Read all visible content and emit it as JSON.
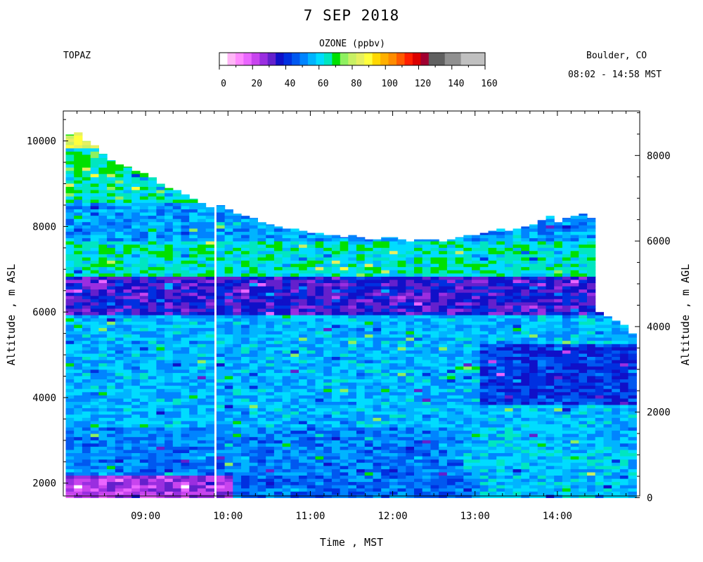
{
  "chart_data": {
    "type": "heatmap",
    "title": "7 SEP 2018",
    "instrument": "TOPAZ",
    "location": "Boulder, CO",
    "time_range": "08:02 - 14:58 MST",
    "xlabel": "Time , MST",
    "ylabel_left": "Altitude , m ASL",
    "ylabel_right": "Altitude , m AGL",
    "x_range_hours": [
      8.0,
      15.0
    ],
    "x_ticks": [
      {
        "value": 9,
        "label": "09:00"
      },
      {
        "value": 10,
        "label": "10:00"
      },
      {
        "value": 11,
        "label": "11:00"
      },
      {
        "value": 12,
        "label": "12:00"
      },
      {
        "value": 13,
        "label": "13:00"
      },
      {
        "value": 14,
        "label": "14:00"
      }
    ],
    "y_left_range": [
      1700,
      10700
    ],
    "y_left_ticks": [
      2000,
      4000,
      6000,
      8000,
      10000
    ],
    "y_right_ticks": [
      0,
      2000,
      4000,
      6000,
      8000
    ],
    "surface_altitude_m": 1660,
    "colorbar": {
      "label": "OZONE (ppbv)",
      "range": [
        0,
        160
      ],
      "tick_values": [
        0,
        20,
        40,
        60,
        80,
        100,
        120,
        140,
        160
      ],
      "colors": [
        "#ffffff",
        "#ffb6f6",
        "#ff8aff",
        "#ea66ff",
        "#c844ee",
        "#9a2ee0",
        "#6420cc",
        "#1010c8",
        "#0030e0",
        "#0058f0",
        "#0084ff",
        "#00b4ff",
        "#00dcff",
        "#00e6c0",
        "#00e000",
        "#8ef060",
        "#c8f064",
        "#e6f060",
        "#ffff3c",
        "#ffd700",
        "#ffb000",
        "#ff8c00",
        "#ff5a00",
        "#ff1e00",
        "#dc0000",
        "#a00030",
        "#606060",
        "#606060",
        "#909090",
        "#909090",
        "#c0c0c0",
        "#c0c0c0",
        "#c0c0c0"
      ]
    },
    "profile_times_hours": [
      8.03,
      8.13,
      8.23,
      8.33,
      8.43,
      8.53,
      8.63,
      8.73,
      8.83,
      8.93,
      9.03,
      9.13,
      9.23,
      9.33,
      9.43,
      9.53,
      9.63,
      9.73,
      9.86,
      9.96,
      10.06,
      10.16,
      10.26,
      10.36,
      10.46,
      10.56,
      10.66,
      10.76,
      10.86,
      10.96,
      11.06,
      11.16,
      11.26,
      11.36,
      11.46,
      11.56,
      11.66,
      11.76,
      11.86,
      11.96,
      12.06,
      12.16,
      12.26,
      12.36,
      12.46,
      12.56,
      12.66,
      12.76,
      12.86,
      12.96,
      13.06,
      13.16,
      13.26,
      13.36,
      13.46,
      13.56,
      13.66,
      13.76,
      13.86,
      13.96,
      14.06,
      14.16,
      14.26,
      14.36,
      14.46,
      14.56,
      14.66,
      14.76,
      14.86
    ],
    "profile_top_altitude_m": [
      10150,
      10200,
      10000,
      9900,
      9700,
      9550,
      9450,
      9400,
      9300,
      9250,
      9150,
      9000,
      8900,
      8850,
      8750,
      8650,
      8550,
      8450,
      8500,
      8400,
      8300,
      8250,
      8200,
      8100,
      8050,
      8000,
      7950,
      7950,
      7900,
      7850,
      7850,
      7800,
      7800,
      7750,
      7800,
      7750,
      7700,
      7700,
      7750,
      7750,
      7700,
      7650,
      7700,
      7700,
      7700,
      7650,
      7700,
      7750,
      7800,
      7800,
      7850,
      7900,
      7950,
      7900,
      7950,
      8000,
      8050,
      8150,
      8250,
      8100,
      8200,
      8250,
      8300,
      8200,
      6000,
      5900,
      5800,
      5700,
      5500
    ],
    "layers": [
      {
        "bottom_m": 1660,
        "top_m": 2150,
        "ozone_ppbv_before_10h": 25,
        "ozone_ppbv_after_13h": 60,
        "ozone_ppbv": 50
      },
      {
        "bottom_m": 2150,
        "top_m": 3300,
        "ozone_ppbv": 52
      },
      {
        "bottom_m": 3300,
        "top_m": 5900,
        "ozone_ppbv": 58
      },
      {
        "bottom_m": 3800,
        "top_m": 5200,
        "ozone_ppbv_after_13h": 43
      },
      {
        "bottom_m": 5900,
        "top_m": 6800,
        "ozone_ppbv": 36
      },
      {
        "bottom_m": 6800,
        "top_m": 7600,
        "ozone_ppbv": 66
      },
      {
        "bottom_m": 7600,
        "top_m": 8500,
        "ozone_ppbv": 55
      },
      {
        "bottom_m": 8500,
        "top_m": 10200,
        "ozone_ppbv": 68
      },
      {
        "bottom_m": 9800,
        "top_m": 10200,
        "ozone_ppbv_near_08h": 88
      }
    ]
  }
}
